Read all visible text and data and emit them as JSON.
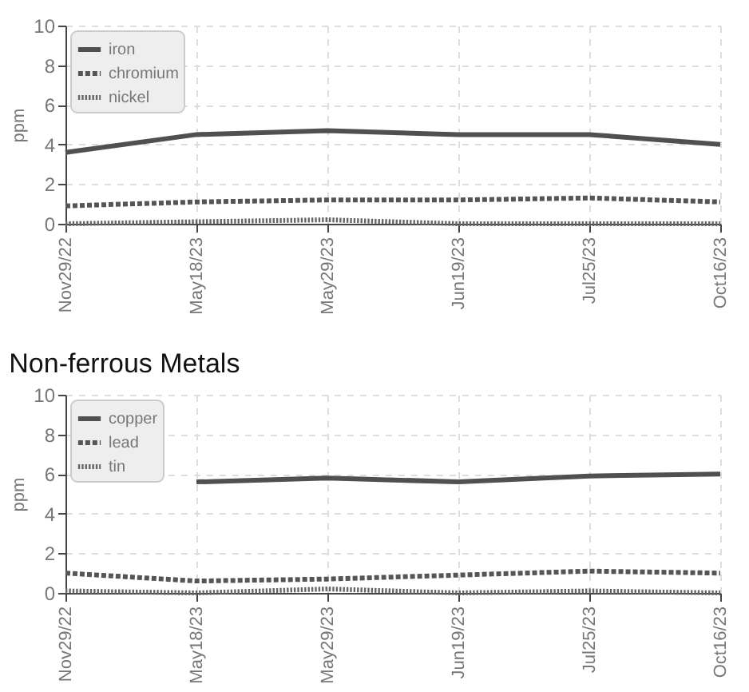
{
  "chart_data": [
    {
      "type": "line",
      "ylabel": "ppm",
      "categories": [
        "Nov29/22",
        "May18/23",
        "May29/23",
        "Jun19/23",
        "Jul25/23",
        "Oct16/23"
      ],
      "ylim": [
        0,
        10
      ],
      "yticks": [
        0,
        2,
        4,
        6,
        8,
        10
      ],
      "grid": true,
      "legend": "top left",
      "marker": "none",
      "series": [
        {
          "name": "iron",
          "color": "#505050",
          "line_style": "solid",
          "values": [
            3.6,
            4.5,
            4.7,
            4.5,
            4.5,
            4.0
          ]
        },
        {
          "name": "chromium",
          "color": "#555555",
          "line_style": "dashed",
          "values": [
            0.9,
            1.1,
            1.2,
            1.2,
            1.3,
            1.1
          ]
        },
        {
          "name": "nickel",
          "color": "#666666",
          "line_style": "dotted",
          "values": [
            0,
            0.1,
            0.2,
            0,
            0,
            0
          ]
        }
      ]
    },
    {
      "type": "line",
      "title": "Non-ferrous Metals",
      "ylabel": "ppm",
      "categories": [
        "Nov29/22",
        "May18/23",
        "May29/23",
        "Jun19/23",
        "Jul25/23",
        "Oct16/23"
      ],
      "ylim": [
        0,
        10
      ],
      "yticks": [
        0,
        2,
        4,
        6,
        8,
        10
      ],
      "grid": true,
      "legend": "top left",
      "marker": "none",
      "series": [
        {
          "name": "copper",
          "color": "#505050",
          "line_style": "solid",
          "values": [
            null,
            5.6,
            5.8,
            5.6,
            5.9,
            6.0
          ]
        },
        {
          "name": "lead",
          "color": "#555555",
          "line_style": "dashed",
          "values": [
            1.0,
            0.6,
            0.7,
            0.9,
            1.1,
            1.0
          ]
        },
        {
          "name": "tin",
          "color": "#666666",
          "line_style": "dotted",
          "values": [
            0.1,
            0,
            0.2,
            0,
            0.1,
            0
          ]
        }
      ]
    }
  ]
}
